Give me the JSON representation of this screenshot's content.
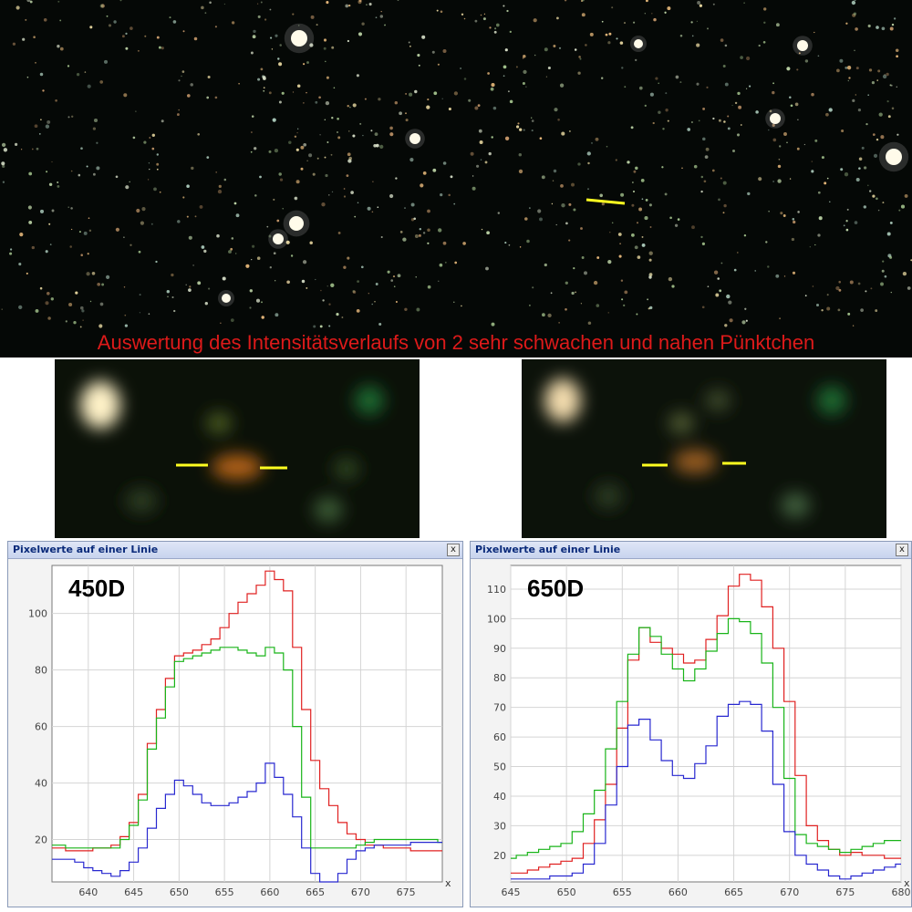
{
  "heading": "Auswertung des Intensitätsverlaufs von 2 sehr schwachen und nahen Pünktchen",
  "colors": {
    "red": "#e02020",
    "green": "#18b418",
    "blue": "#2828d0",
    "marker": "#ffff20",
    "heading": "#dd1a1a"
  },
  "windows": [
    {
      "title": "Pixelwerte auf einer Linie",
      "close": "x",
      "icon": "close-icon"
    },
    {
      "title": "Pixelwerte auf einer Linie",
      "close": "x",
      "icon": "close-icon"
    }
  ],
  "chart_data": [
    {
      "type": "line",
      "label": "450D",
      "xlim": [
        636,
        679
      ],
      "ylim": [
        5,
        117
      ],
      "x_ticks": [
        640,
        645,
        650,
        655,
        660,
        665,
        670,
        675
      ],
      "y_ticks": [
        20,
        40,
        60,
        80,
        100
      ],
      "x_axis_marker": "x",
      "grid": true,
      "x": [
        636,
        637,
        638,
        639,
        640,
        641,
        642,
        643,
        644,
        645,
        646,
        647,
        648,
        649,
        650,
        651,
        652,
        653,
        654,
        655,
        656,
        657,
        658,
        659,
        660,
        661,
        662,
        663,
        664,
        665,
        666,
        667,
        668,
        669,
        670,
        671,
        672,
        673,
        674,
        675,
        676,
        677,
        678,
        679
      ],
      "series": [
        {
          "color": "red",
          "values": [
            17,
            17,
            16,
            16,
            16,
            17,
            17,
            18,
            21,
            26,
            36,
            54,
            66,
            77,
            85,
            86,
            87,
            89,
            91,
            95,
            100,
            104,
            107,
            110,
            115,
            112,
            108,
            88,
            66,
            48,
            38,
            32,
            26,
            22,
            20,
            18,
            18,
            17,
            17,
            17,
            16,
            16,
            16,
            16
          ]
        },
        {
          "color": "green",
          "values": [
            18,
            18,
            17,
            17,
            17,
            17,
            17,
            17,
            20,
            25,
            34,
            52,
            63,
            74,
            83,
            84,
            85,
            86,
            87,
            88,
            88,
            87,
            86,
            85,
            88,
            86,
            80,
            60,
            35,
            17,
            17,
            17,
            17,
            17,
            18,
            19,
            20,
            20,
            20,
            20,
            20,
            20,
            20,
            19
          ]
        },
        {
          "color": "blue",
          "values": [
            13,
            13,
            13,
            12,
            10,
            9,
            8,
            7,
            9,
            12,
            17,
            24,
            31,
            36,
            41,
            39,
            36,
            33,
            32,
            32,
            33,
            35,
            37,
            40,
            47,
            42,
            36,
            28,
            17,
            8,
            5,
            5,
            8,
            13,
            16,
            17,
            18,
            18,
            18,
            18,
            19,
            19,
            19,
            19
          ]
        }
      ]
    },
    {
      "type": "line",
      "label": "650D",
      "xlim": [
        645,
        680
      ],
      "ylim": [
        11,
        118
      ],
      "x_ticks": [
        645,
        650,
        655,
        660,
        665,
        670,
        675,
        680
      ],
      "y_ticks": [
        20,
        30,
        40,
        50,
        60,
        70,
        80,
        90,
        100,
        110
      ],
      "x_axis_marker": "x",
      "grid": true,
      "x": [
        645,
        646,
        647,
        648,
        649,
        650,
        651,
        652,
        653,
        654,
        655,
        656,
        657,
        658,
        659,
        660,
        661,
        662,
        663,
        664,
        665,
        666,
        667,
        668,
        669,
        670,
        671,
        672,
        673,
        674,
        675,
        676,
        677,
        678,
        679,
        680
      ],
      "series": [
        {
          "color": "red",
          "values": [
            14,
            14,
            15,
            16,
            17,
            18,
            19,
            24,
            32,
            44,
            63,
            86,
            97,
            92,
            90,
            88,
            85,
            86,
            93,
            101,
            111,
            115,
            113,
            104,
            90,
            72,
            47,
            30,
            25,
            22,
            20,
            21,
            20,
            20,
            19,
            19
          ]
        },
        {
          "color": "green",
          "values": [
            19,
            20,
            21,
            22,
            23,
            24,
            28,
            34,
            42,
            56,
            72,
            88,
            97,
            94,
            88,
            83,
            79,
            83,
            89,
            95,
            100,
            99,
            95,
            85,
            70,
            46,
            27,
            24,
            23,
            22,
            21,
            22,
            23,
            24,
            25,
            25
          ]
        },
        {
          "color": "blue",
          "values": [
            12,
            12,
            12,
            12,
            13,
            13,
            14,
            17,
            24,
            37,
            50,
            64,
            66,
            59,
            52,
            47,
            46,
            51,
            57,
            67,
            71,
            72,
            71,
            62,
            44,
            28,
            20,
            17,
            15,
            13,
            12,
            13,
            14,
            15,
            16,
            17
          ]
        }
      ]
    }
  ]
}
